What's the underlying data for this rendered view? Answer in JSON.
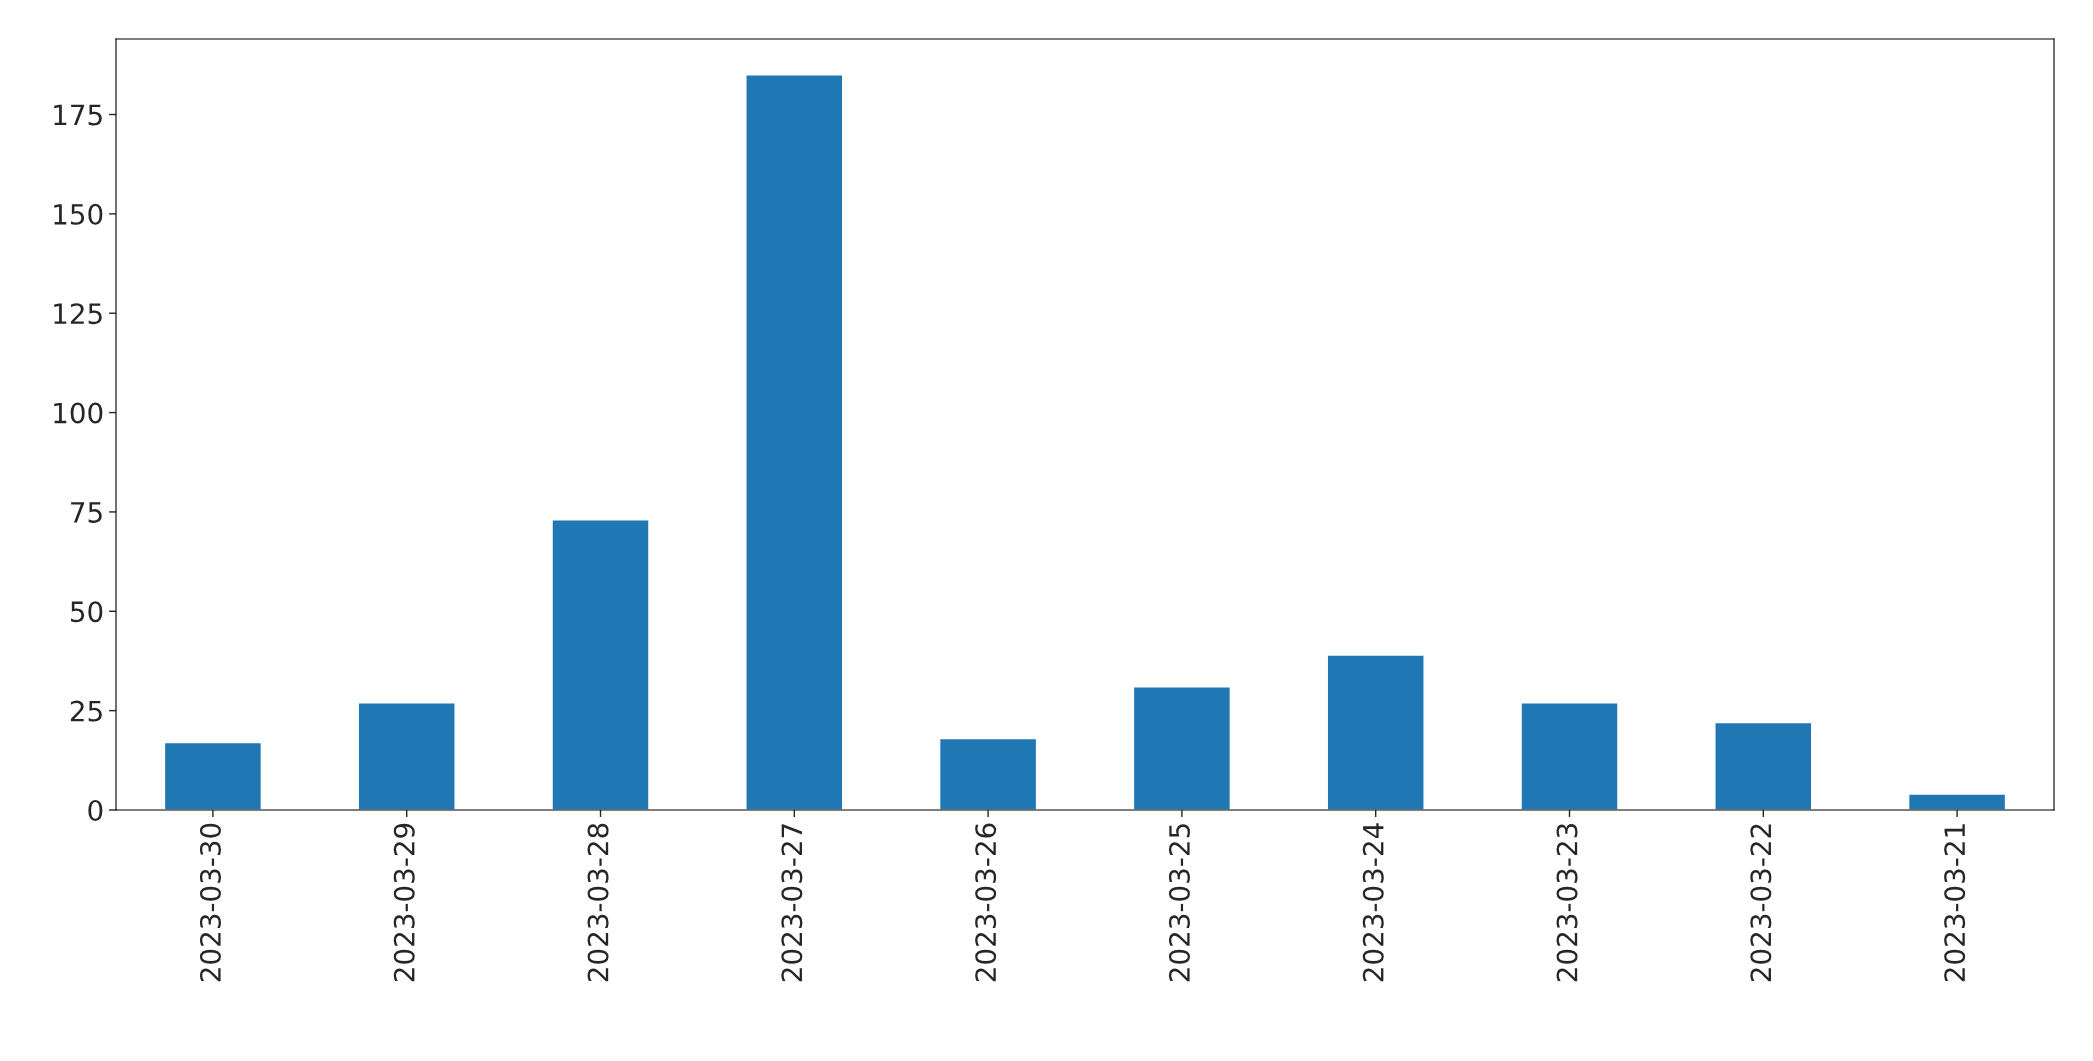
{
  "chart_data": {
    "type": "bar",
    "categories": [
      "2023-03-30",
      "2023-03-29",
      "2023-03-28",
      "2023-03-27",
      "2023-03-26",
      "2023-03-25",
      "2023-03-24",
      "2023-03-23",
      "2023-03-22",
      "2023-03-21"
    ],
    "values": [
      17,
      27,
      73,
      185,
      18,
      31,
      39,
      27,
      22,
      4
    ],
    "color": "#1f77b4",
    "ylim": [
      0,
      194
    ],
    "yticks": [
      0,
      25,
      50,
      75,
      100,
      125,
      150,
      175
    ],
    "grid": false,
    "legend": false
  }
}
